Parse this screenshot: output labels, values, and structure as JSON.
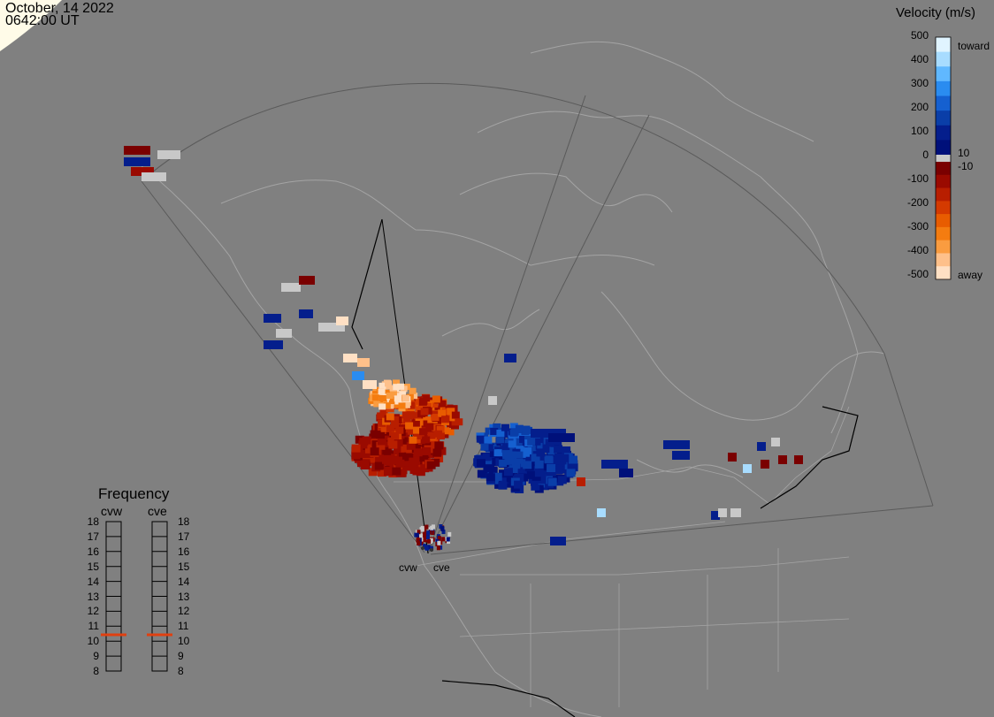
{
  "header": {
    "date": "October, 14 2022",
    "time": "0642:00 UT"
  },
  "velocity_scale": {
    "title": "Velocity (m/s)",
    "ticks": [
      "500",
      "400",
      "300",
      "200",
      "100",
      "0",
      "-100",
      "-200",
      "-300",
      "-400",
      "-500"
    ],
    "labels": {
      "toward": "toward",
      "pos_thresh": "10",
      "neg_thresh": "-10",
      "away": "away"
    },
    "colors": {
      "toward": [
        "#e0f4ff",
        "#a8dcff",
        "#60b8ff",
        "#2a8cf0",
        "#1560d0",
        "#0a3ea8",
        "#041e8c",
        "#00107a"
      ],
      "away": [
        "#7a0000",
        "#9a0a00",
        "#b81e00",
        "#d43a00",
        "#e85c00",
        "#f47c10",
        "#fa9c40",
        "#fec08a",
        "#ffe0c4"
      ],
      "ground": "#c8c8c8"
    }
  },
  "frequency": {
    "title": "Frequency",
    "radars": [
      "cvw",
      "cve"
    ],
    "values": [
      "18",
      "17",
      "16",
      "15",
      "14",
      "13",
      "12",
      "11",
      "10",
      "9",
      "8"
    ],
    "selected_mhz": [
      10.5,
      10.5
    ],
    "marker_color": "#e04010"
  },
  "sites": [
    "cvw",
    "cve"
  ]
}
